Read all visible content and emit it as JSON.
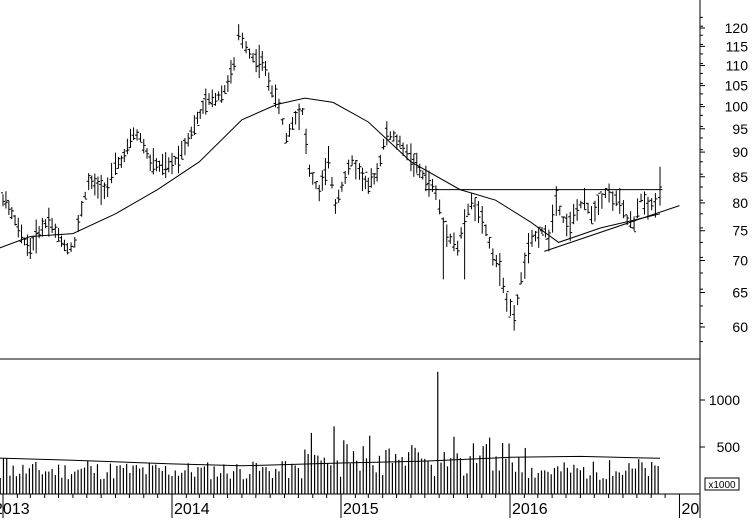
{
  "chart_data": [
    {
      "type": "ohlc",
      "x_axis": {
        "tick_labels": [
          "2013",
          "2014",
          "2015",
          "2016",
          "20"
        ],
        "tick_dates": [
          "2013-01-01",
          "2014-01-01",
          "2015-01-01",
          "2016-01-01",
          "2017-01-01"
        ]
      },
      "y_axis": {
        "scale": "log",
        "side": "right",
        "ylim": [
          55,
          130
        ],
        "tick_values": [
          60,
          65,
          70,
          75,
          80,
          85,
          90,
          95,
          100,
          105,
          110,
          115,
          120
        ],
        "tick_labels": [
          "60",
          "65",
          "70",
          "75",
          "80",
          "85",
          "90",
          "95",
          "100",
          "105",
          "110",
          "115",
          "120"
        ]
      },
      "series": [
        {
          "kind": "weekly-ohlc-bars",
          "points": [
            {
              "date": "2012-12-05",
              "c": 81
            },
            {
              "date": "2013-01-01",
              "c": 81
            },
            {
              "date": "2013-01-20",
              "c": 78
            },
            {
              "date": "2013-02-10",
              "c": 74
            },
            {
              "date": "2013-03-01",
              "c": 72
            },
            {
              "date": "2013-03-20",
              "c": 75
            },
            {
              "date": "2013-04-10",
              "c": 77
            },
            {
              "date": "2013-05-01",
              "c": 74
            },
            {
              "date": "2013-05-20",
              "c": 72
            },
            {
              "date": "2013-06-05",
              "c": 73
            },
            {
              "date": "2013-06-20",
              "c": 79
            },
            {
              "date": "2013-07-05",
              "c": 84
            },
            {
              "date": "2013-07-25",
              "c": 83
            },
            {
              "date": "2013-08-15",
              "c": 83
            },
            {
              "date": "2013-09-01",
              "c": 87
            },
            {
              "date": "2013-09-20",
              "c": 89
            },
            {
              "date": "2013-10-10",
              "c": 94
            },
            {
              "date": "2013-10-25",
              "c": 93
            },
            {
              "date": "2013-11-15",
              "c": 88
            },
            {
              "date": "2013-12-05",
              "c": 87
            },
            {
              "date": "2013-12-25",
              "c": 87
            },
            {
              "date": "2014-01-15",
              "c": 89
            },
            {
              "date": "2014-02-05",
              "c": 93
            },
            {
              "date": "2014-02-25",
              "c": 97
            },
            {
              "date": "2014-03-15",
              "c": 101
            },
            {
              "date": "2014-04-05",
              "c": 102
            },
            {
              "date": "2014-04-25",
              "c": 104
            },
            {
              "date": "2014-05-15",
              "c": 110
            },
            {
              "date": "2014-05-25",
              "c": 118
            },
            {
              "date": "2014-06-10",
              "c": 115
            },
            {
              "date": "2014-06-25",
              "c": 112
            },
            {
              "date": "2014-07-15",
              "c": 111
            },
            {
              "date": "2014-08-05",
              "c": 104
            },
            {
              "date": "2014-08-20",
              "c": 100
            },
            {
              "date": "2014-09-05",
              "c": 93
            },
            {
              "date": "2014-09-25",
              "c": 98
            },
            {
              "date": "2014-10-10",
              "c": 99
            },
            {
              "date": "2014-10-25",
              "c": 86
            },
            {
              "date": "2014-11-15",
              "c": 82
            },
            {
              "date": "2014-12-05",
              "c": 88
            },
            {
              "date": "2014-12-20",
              "c": 80
            },
            {
              "date": "2015-01-10",
              "c": 85
            },
            {
              "date": "2015-01-25",
              "c": 88
            },
            {
              "date": "2015-02-10",
              "c": 86
            },
            {
              "date": "2015-03-01",
              "c": 83
            },
            {
              "date": "2015-03-20",
              "c": 86
            },
            {
              "date": "2015-04-10",
              "c": 94
            },
            {
              "date": "2015-04-25",
              "c": 93
            },
            {
              "date": "2015-05-15",
              "c": 91
            },
            {
              "date": "2015-06-01",
              "c": 89
            },
            {
              "date": "2015-06-20",
              "c": 86
            },
            {
              "date": "2015-07-10",
              "c": 84
            },
            {
              "date": "2015-07-25",
              "c": 82
            },
            {
              "date": "2015-08-10",
              "c": 76
            },
            {
              "date": "2015-08-25",
              "c": 74
            },
            {
              "date": "2015-09-10",
              "c": 72
            },
            {
              "date": "2015-09-25",
              "c": 77
            },
            {
              "date": "2015-10-10",
              "c": 80
            },
            {
              "date": "2015-10-25",
              "c": 79
            },
            {
              "date": "2015-11-10",
              "c": 75
            },
            {
              "date": "2015-11-25",
              "c": 71
            },
            {
              "date": "2015-12-10",
              "c": 69
            },
            {
              "date": "2015-12-25",
              "c": 64
            },
            {
              "date": "2016-01-10",
              "c": 61
            },
            {
              "date": "2016-01-25",
              "c": 67
            },
            {
              "date": "2016-02-10",
              "c": 72
            },
            {
              "date": "2016-02-25",
              "c": 74
            },
            {
              "date": "2016-03-10",
              "c": 75
            },
            {
              "date": "2016-03-25",
              "c": 74
            },
            {
              "date": "2016-04-10",
              "c": 81
            },
            {
              "date": "2016-04-25",
              "c": 77
            },
            {
              "date": "2016-05-10",
              "c": 76
            },
            {
              "date": "2016-05-25",
              "c": 79
            },
            {
              "date": "2016-06-10",
              "c": 80
            },
            {
              "date": "2016-06-25",
              "c": 78
            },
            {
              "date": "2016-07-10",
              "c": 80
            },
            {
              "date": "2016-07-25",
              "c": 82
            },
            {
              "date": "2016-08-10",
              "c": 81
            },
            {
              "date": "2016-08-25",
              "c": 80
            },
            {
              "date": "2016-09-10",
              "c": 77
            },
            {
              "date": "2016-09-25",
              "c": 76
            },
            {
              "date": "2016-10-10",
              "c": 81
            },
            {
              "date": "2016-10-25",
              "c": 79
            },
            {
              "date": "2016-11-10",
              "c": 80
            },
            {
              "date": "2016-11-20",
              "c": 83
            }
          ]
        },
        {
          "kind": "moving-average-line",
          "points": [
            {
              "date": "2012-12-05",
              "v": 71.5
            },
            {
              "date": "2013-03-01",
              "v": 74
            },
            {
              "date": "2013-06-01",
              "v": 74.5
            },
            {
              "date": "2013-09-01",
              "v": 78
            },
            {
              "date": "2013-12-01",
              "v": 82.5
            },
            {
              "date": "2014-03-01",
              "v": 88
            },
            {
              "date": "2014-06-01",
              "v": 97
            },
            {
              "date": "2014-08-15",
              "v": 100.5
            },
            {
              "date": "2014-10-15",
              "v": 102
            },
            {
              "date": "2014-12-15",
              "v": 101
            },
            {
              "date": "2015-03-01",
              "v": 96.5
            },
            {
              "date": "2015-06-01",
              "v": 88
            },
            {
              "date": "2015-09-15",
              "v": 82.5
            },
            {
              "date": "2015-12-01",
              "v": 80.5
            },
            {
              "date": "2016-02-15",
              "v": 76.5
            },
            {
              "date": "2016-04-15",
              "v": 73
            },
            {
              "date": "2016-07-15",
              "v": 75.5
            },
            {
              "date": "2016-10-01",
              "v": 77
            },
            {
              "date": "2016-11-20",
              "v": 78
            }
          ]
        }
      ],
      "annotations": [
        {
          "kind": "horizontal-line",
          "date_from": "2015-07-01",
          "date_to": "2016-11-25",
          "value": 82.5
        },
        {
          "kind": "trend-line",
          "from": {
            "date": "2016-03-15",
            "value": 71.5
          },
          "to": {
            "date": "2017-01-01",
            "value": 79.5
          }
        }
      ]
    },
    {
      "type": "bar",
      "x_axis": {
        "tick_labels": [
          "2013",
          "2014",
          "2015",
          "2016",
          "20"
        ]
      },
      "y_axis": {
        "side": "right",
        "multiplier_label": "x1000",
        "ylim": [
          0,
          1250
        ],
        "tick_values": [
          500,
          1000
        ],
        "tick_labels": [
          "500",
          "1000"
        ]
      },
      "series": [
        {
          "kind": "weekly-volume-bars",
          "points": [
            {
              "date": "2013-01-05",
              "v": 380
            },
            {
              "date": "2013-03-01",
              "v": 330
            },
            {
              "date": "2013-05-01",
              "v": 320
            },
            {
              "date": "2013-07-01",
              "v": 350
            },
            {
              "date": "2013-09-01",
              "v": 300
            },
            {
              "date": "2013-11-01",
              "v": 320
            },
            {
              "date": "2014-01-01",
              "v": 300
            },
            {
              "date": "2014-03-01",
              "v": 280
            },
            {
              "date": "2014-05-15",
              "v": 330
            },
            {
              "date": "2014-07-01",
              "v": 330
            },
            {
              "date": "2014-09-01",
              "v": 350
            },
            {
              "date": "2014-10-10",
              "v": 770
            },
            {
              "date": "2014-10-25",
              "v": 650
            },
            {
              "date": "2014-11-20",
              "v": 660
            },
            {
              "date": "2014-12-15",
              "v": 720
            },
            {
              "date": "2015-01-15",
              "v": 430
            },
            {
              "date": "2015-03-01",
              "v": 620
            },
            {
              "date": "2015-04-10",
              "v": 700
            },
            {
              "date": "2015-06-01",
              "v": 520
            },
            {
              "date": "2015-07-25",
              "v": 1300
            },
            {
              "date": "2015-09-01",
              "v": 610
            },
            {
              "date": "2015-10-10",
              "v": 540
            },
            {
              "date": "2015-11-15",
              "v": 600
            },
            {
              "date": "2015-12-25",
              "v": 720
            },
            {
              "date": "2016-02-01",
              "v": 490
            },
            {
              "date": "2016-04-01",
              "v": 400
            },
            {
              "date": "2016-06-01",
              "v": 350
            },
            {
              "date": "2016-08-01",
              "v": 360
            },
            {
              "date": "2016-10-01",
              "v": 370
            },
            {
              "date": "2016-11-20",
              "v": 330
            }
          ]
        },
        {
          "kind": "moving-average-line",
          "points": [
            {
              "date": "2012-12-05",
              "v": 385
            },
            {
              "date": "2013-06-01",
              "v": 360
            },
            {
              "date": "2014-01-01",
              "v": 320
            },
            {
              "date": "2014-06-01",
              "v": 300
            },
            {
              "date": "2015-01-01",
              "v": 330
            },
            {
              "date": "2015-07-01",
              "v": 350
            },
            {
              "date": "2016-01-01",
              "v": 390
            },
            {
              "date": "2016-06-01",
              "v": 400
            },
            {
              "date": "2016-11-20",
              "v": 380
            }
          ]
        }
      ]
    }
  ]
}
